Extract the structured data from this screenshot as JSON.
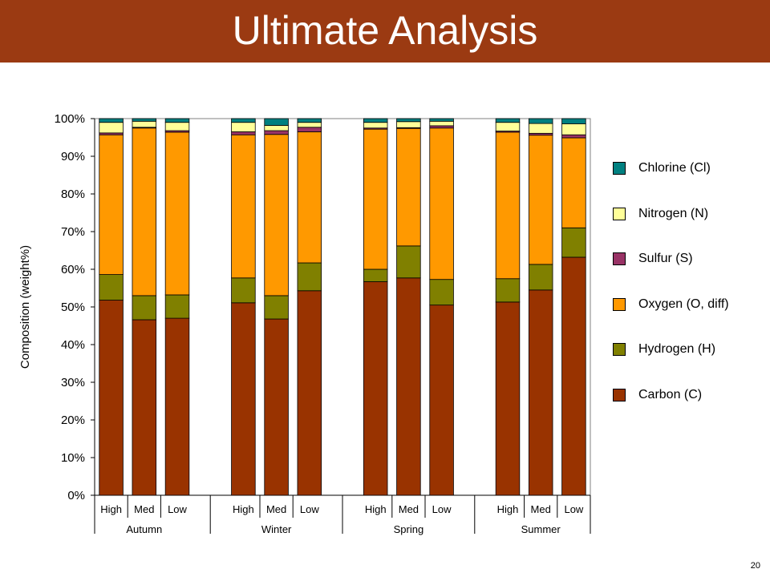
{
  "slide": {
    "title": "Ultimate Analysis",
    "page_number": "20"
  },
  "colors": {
    "title_bar": "#9b3a12",
    "carbon": "#993300",
    "hydrogen": "#808000",
    "oxygen": "#ff9900",
    "sulfur": "#993366",
    "nitrogen": "#ffff99",
    "chlorine": "#008080"
  },
  "chart_data": {
    "type": "bar",
    "stacked": true,
    "ylabel": "Composition (weight%)",
    "xlabel": "",
    "ylim": [
      0,
      100
    ],
    "yticks": [
      "0%",
      "10%",
      "20%",
      "30%",
      "40%",
      "50%",
      "60%",
      "70%",
      "80%",
      "90%",
      "100%"
    ],
    "grid": false,
    "legend_position": "right",
    "groups": [
      "Autumn",
      "Winter",
      "Spring",
      "Summer"
    ],
    "categories": [
      "High",
      "Med",
      "Low",
      "High",
      "Med",
      "Low",
      "High",
      "Med",
      "Low",
      "High",
      "Med",
      "Low"
    ],
    "category_groups": [
      "Autumn",
      "Autumn",
      "Autumn",
      "Winter",
      "Winter",
      "Winter",
      "Spring",
      "Spring",
      "Spring",
      "Summer",
      "Summer",
      "Summer"
    ],
    "series": [
      {
        "name": "Carbon (C)",
        "color": "#993300",
        "values": [
          51.8,
          46.6,
          47.0,
          51.1,
          46.8,
          54.3,
          56.7,
          57.7,
          50.5,
          51.3,
          54.5,
          63.2
        ]
      },
      {
        "name": "Hydrogen (H)",
        "color": "#808000",
        "values": [
          6.8,
          6.4,
          6.2,
          6.6,
          6.2,
          7.4,
          3.3,
          8.5,
          6.8,
          6.2,
          6.8,
          7.8
        ]
      },
      {
        "name": "Oxygen (O, diff)",
        "color": "#ff9900",
        "values": [
          37.1,
          44.5,
          43.2,
          38.0,
          42.8,
          34.8,
          37.2,
          31.2,
          40.2,
          38.9,
          34.3,
          23.9
        ]
      },
      {
        "name": "Sulfur (S)",
        "color": "#993366",
        "values": [
          0.5,
          0.2,
          0.4,
          0.8,
          1.0,
          1.2,
          0.3,
          0.2,
          0.6,
          0.3,
          0.5,
          0.8
        ]
      },
      {
        "name": "Nitrogen (N)",
        "color": "#ffff99",
        "values": [
          2.8,
          1.6,
          2.2,
          2.5,
          1.4,
          1.3,
          1.5,
          1.6,
          1.2,
          2.3,
          2.6,
          2.9
        ]
      },
      {
        "name": "Chlorine (Cl)",
        "color": "#008080",
        "values": [
          1.0,
          0.7,
          1.0,
          1.0,
          1.8,
          1.0,
          1.0,
          0.8,
          0.7,
          1.0,
          1.3,
          1.4
        ]
      }
    ]
  },
  "legend": {
    "items": [
      {
        "label": "Chlorine (Cl)",
        "color": "#008080"
      },
      {
        "label": "Nitrogen (N)",
        "color": "#ffff99"
      },
      {
        "label": "Sulfur (S)",
        "color": "#993366"
      },
      {
        "label": "Oxygen (O, diff)",
        "color": "#ff9900"
      },
      {
        "label": "Hydrogen (H)",
        "color": "#808000"
      },
      {
        "label": "Carbon (C)",
        "color": "#993300"
      }
    ]
  }
}
